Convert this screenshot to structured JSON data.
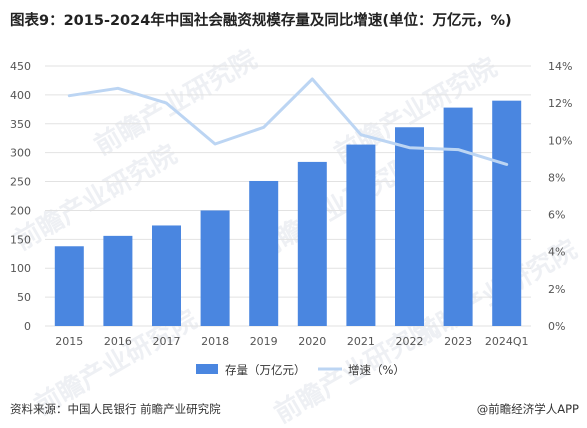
{
  "title": "图表9：2015-2024年中国社会融资规模存量及同比增速(单位：万亿元，%)",
  "watermark": "前瞻产业研究院",
  "source": "资料来源：中国人民银行 前瞻产业研究院",
  "credit": "@前瞻经济学人APP",
  "colors": {
    "bar": "#4a86e0",
    "line": "#bcd5f3",
    "grid": "#e2e2e2",
    "axis_text": "#555555"
  },
  "chart_data": {
    "type": "bar+line",
    "categories": [
      "2015",
      "2016",
      "2017",
      "2018",
      "2019",
      "2020",
      "2021",
      "2022",
      "2023",
      "2024Q1"
    ],
    "series": [
      {
        "name": "存量（万亿元）",
        "type": "bar",
        "axis": "left",
        "values": [
          138,
          156,
          174,
          200,
          251,
          284,
          314,
          344,
          378,
          390
        ]
      },
      {
        "name": "增速（%）",
        "type": "line",
        "axis": "right",
        "values": [
          12.4,
          12.8,
          12.0,
          9.8,
          10.7,
          13.3,
          10.3,
          9.6,
          9.5,
          8.7
        ]
      }
    ],
    "y_left": {
      "min": 0,
      "max": 450,
      "step": 50,
      "ticks": [
        "0",
        "50",
        "100",
        "150",
        "200",
        "250",
        "300",
        "350",
        "400",
        "450"
      ]
    },
    "y_right": {
      "min": 0,
      "max": 14,
      "step": 2,
      "ticks": [
        "0%",
        "2%",
        "4%",
        "6%",
        "8%",
        "10%",
        "12%",
        "14%"
      ]
    },
    "legend_position": "bottom-center",
    "grid": true
  }
}
